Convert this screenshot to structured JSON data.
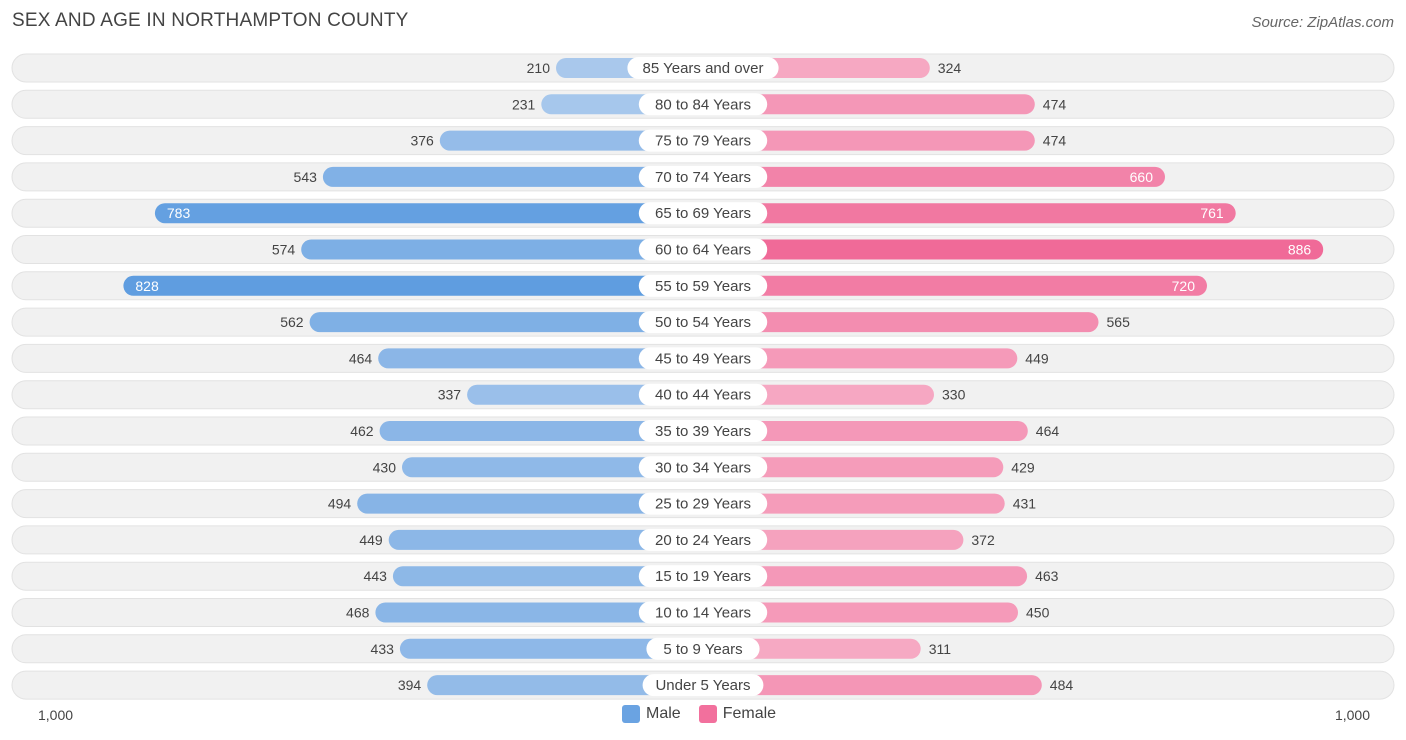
{
  "title": "SEX AND AGE IN NORTHAMPTON COUNTY",
  "source": "Source: ZipAtlas.com",
  "colors": {
    "male_light": "#a9c8ec",
    "male_dark": "#5f9de0",
    "female_light": "#f6a9c3",
    "female_dark": "#f06a98",
    "row_bg": "#f1f1f1"
  },
  "legend": {
    "male_label": "Male",
    "female_label": "Female"
  },
  "axis": {
    "left_label": "1,000",
    "right_label": "1,000"
  },
  "chart_data": {
    "type": "bar",
    "orientation": "horizontal-butterfly",
    "title": "SEX AND AGE IN NORTHAMPTON COUNTY",
    "xlim": [
      -1000,
      1000
    ],
    "categories": [
      "85 Years and over",
      "80 to 84 Years",
      "75 to 79 Years",
      "70 to 74 Years",
      "65 to 69 Years",
      "60 to 64 Years",
      "55 to 59 Years",
      "50 to 54 Years",
      "45 to 49 Years",
      "40 to 44 Years",
      "35 to 39 Years",
      "30 to 34 Years",
      "25 to 29 Years",
      "20 to 24 Years",
      "15 to 19 Years",
      "10 to 14 Years",
      "5 to 9 Years",
      "Under 5 Years"
    ],
    "series": [
      {
        "name": "Male",
        "values": [
          210,
          231,
          376,
          543,
          783,
          574,
          828,
          562,
          464,
          337,
          462,
          430,
          494,
          449,
          443,
          468,
          433,
          394
        ]
      },
      {
        "name": "Female",
        "values": [
          324,
          474,
          474,
          660,
          761,
          886,
          720,
          565,
          449,
          330,
          464,
          429,
          431,
          372,
          463,
          450,
          311,
          484
        ]
      }
    ]
  }
}
